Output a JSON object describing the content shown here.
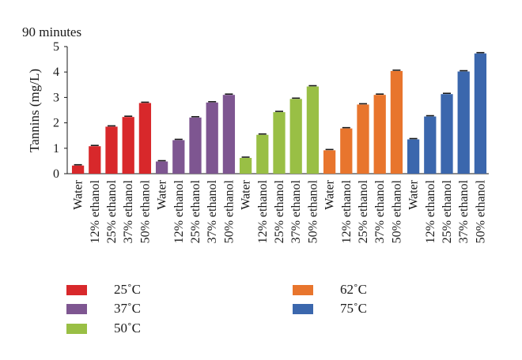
{
  "chart_data": {
    "type": "bar",
    "title": "90 minutes",
    "ylabel": "Tannins (mg/L)",
    "xlabel": "",
    "ylim": [
      0,
      5
    ],
    "yticks": [
      "0",
      "1",
      "2",
      "3",
      "4",
      "5"
    ],
    "categories": [
      "Water",
      "12% ethanol",
      "25% ethanol",
      "37% ethanol",
      "50% ethanol"
    ],
    "series": [
      {
        "name": "25˚C",
        "color": "#d8282b",
        "values": [
          0.32,
          1.08,
          1.85,
          2.23,
          2.78
        ]
      },
      {
        "name": "37˚C",
        "color": "#7e5691",
        "values": [
          0.48,
          1.32,
          2.21,
          2.8,
          3.1
        ]
      },
      {
        "name": "50˚C",
        "color": "#99bf45",
        "values": [
          0.62,
          1.53,
          2.42,
          2.94,
          3.43
        ]
      },
      {
        "name": "62˚C",
        "color": "#e8752d",
        "values": [
          0.92,
          1.78,
          2.72,
          3.1,
          4.04
        ]
      },
      {
        "name": "75˚C",
        "color": "#3b67ad",
        "values": [
          1.35,
          2.25,
          3.13,
          4.02,
          4.73
        ]
      }
    ],
    "legend_position": "bottom"
  }
}
